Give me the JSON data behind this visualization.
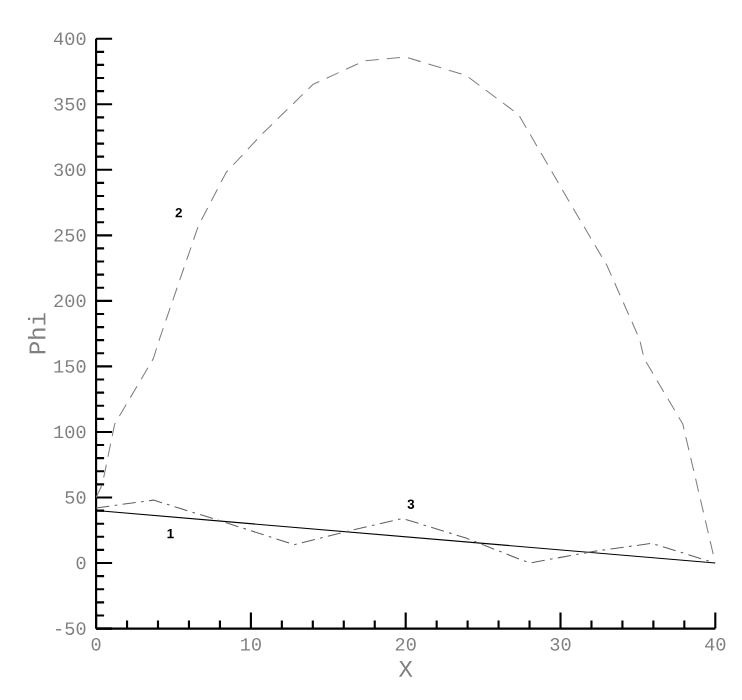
{
  "chart_data": {
    "type": "line",
    "xlabel": "X",
    "ylabel": "Phi",
    "xlim": [
      0,
      40
    ],
    "ylim": [
      -50,
      400
    ],
    "xticks": [
      0,
      10,
      20,
      30,
      40
    ],
    "yticks": [
      -50,
      0,
      50,
      100,
      150,
      200,
      250,
      300,
      350,
      400
    ],
    "grid": false,
    "legend": false,
    "marker": "none",
    "series": [
      {
        "name": "1",
        "color": "#000000",
        "line_style": "solid",
        "x": [
          0,
          40
        ],
        "values": [
          40,
          0
        ]
      },
      {
        "name": "2",
        "color": "#808080",
        "line_style": "dashed",
        "x": [
          0,
          0.4,
          1.2,
          3.7,
          4.1,
          6.6,
          8.4,
          10.7,
          14,
          17.3,
          20,
          23.9,
          27.3,
          30.5,
          33,
          35.1,
          35.4,
          37.9,
          40
        ],
        "values": [
          50,
          60,
          106,
          156,
          171,
          257,
          298,
          327,
          365,
          383,
          386,
          372,
          342,
          277,
          227,
          171,
          156,
          106,
          0
        ]
      },
      {
        "name": "3",
        "color": "#606060",
        "line_style": "dashdot",
        "x": [
          0,
          3.7,
          7.8,
          12.8,
          16.5,
          19.8,
          23.9,
          28,
          32.2,
          35.9,
          40
        ],
        "values": [
          42,
          48,
          33,
          14,
          25,
          34,
          19,
          0,
          9,
          15,
          0
        ]
      }
    ]
  }
}
